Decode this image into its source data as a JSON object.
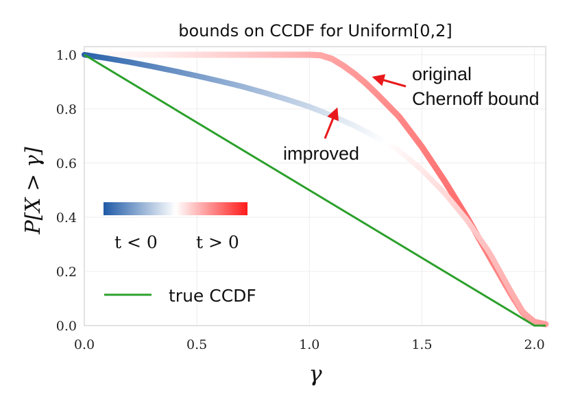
{
  "chart_data": {
    "type": "line",
    "title": "bounds on CCDF for Uniform[0,2]",
    "xlabel": "γ",
    "ylabel": "P[X > γ]",
    "xlim": [
      0.0,
      2.05
    ],
    "ylim": [
      0.0,
      1.03
    ],
    "x_ticks": [
      "0.0",
      "0.5",
      "1.0",
      "1.5",
      "2.0"
    ],
    "x_tick_values": [
      0.0,
      0.5,
      1.0,
      1.5,
      2.0
    ],
    "y_ticks": [
      "0.0",
      "0.2",
      "0.4",
      "0.6",
      "0.8",
      "1.0"
    ],
    "y_tick_values": [
      0.0,
      0.2,
      0.4,
      0.6,
      0.8,
      1.0
    ],
    "grid": true,
    "series": [
      {
        "name": "true CCDF",
        "color": "#2ca02c",
        "x": [
          0.0,
          2.0,
          2.05
        ],
        "y": [
          1.0,
          0.0,
          0.0
        ]
      },
      {
        "annotation": "original Chernoff bound",
        "colormap": "blue-white-red (t<0 blue, t>0 red)",
        "x": [
          0.0,
          0.25,
          0.5,
          0.75,
          1.0,
          1.05,
          1.1,
          1.15,
          1.2,
          1.25,
          1.3,
          1.4,
          1.5,
          1.6,
          1.7,
          1.8,
          1.9,
          1.95,
          2.0,
          2.05
        ],
        "y": [
          1.0,
          1.0,
          1.0,
          1.0,
          1.0,
          0.998,
          0.985,
          0.96,
          0.93,
          0.895,
          0.855,
          0.77,
          0.66,
          0.535,
          0.4,
          0.255,
          0.11,
          0.045,
          0.012,
          0.005
        ]
      },
      {
        "annotation": "improved",
        "colormap": "blue-white-red (t<0 blue, t>0 red)",
        "x": [
          0.0,
          0.1,
          0.2,
          0.3,
          0.4,
          0.5,
          0.6,
          0.7,
          0.8,
          0.9,
          1.0,
          1.1,
          1.2,
          1.3,
          1.4,
          1.5,
          1.6,
          1.7,
          1.8,
          1.9,
          1.95,
          2.0,
          2.05
        ],
        "y": [
          1.0,
          0.987,
          0.973,
          0.957,
          0.94,
          0.922,
          0.903,
          0.883,
          0.86,
          0.835,
          0.808,
          0.775,
          0.738,
          0.695,
          0.645,
          0.575,
          0.49,
          0.39,
          0.27,
          0.12,
          0.05,
          0.015,
          0.006
        ]
      }
    ],
    "annotations": [
      {
        "text_lines": [
          "original",
          "Chernoff bound"
        ],
        "arrow_to": [
          1.26,
          0.91
        ]
      },
      {
        "text_lines": [
          "improved"
        ],
        "arrow_to": [
          1.12,
          0.81
        ]
      }
    ],
    "colorbar": {
      "colors": [
        "#1f5aa6",
        "#ffffff",
        "#ff1a1a"
      ],
      "label_left": "t < 0",
      "label_right": "t > 0"
    },
    "legend": {
      "placement": "lower-left",
      "entries": [
        {
          "label": "true CCDF",
          "color": "#2ca02c"
        }
      ]
    }
  }
}
